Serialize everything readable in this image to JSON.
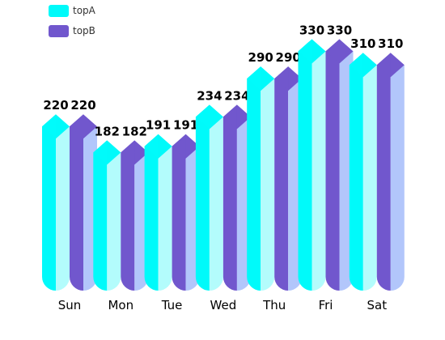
{
  "chart_data": {
    "type": "bar",
    "categories": [
      "Sun",
      "Mon",
      "Tue",
      "Wed",
      "Thu",
      "Fri",
      "Sat"
    ],
    "series": [
      {
        "name": "topA",
        "values": [
          220,
          182,
          191,
          234,
          290,
          330,
          310
        ],
        "color": "#00fafa",
        "light": "#b3fcfc"
      },
      {
        "name": "topB",
        "values": [
          220,
          182,
          191,
          234,
          290,
          330,
          310
        ],
        "color": "#7157cd",
        "light": "#b2c6fb"
      }
    ],
    "ylim": [
      0,
      340
    ],
    "grid": false,
    "legend_position": "top-left"
  }
}
